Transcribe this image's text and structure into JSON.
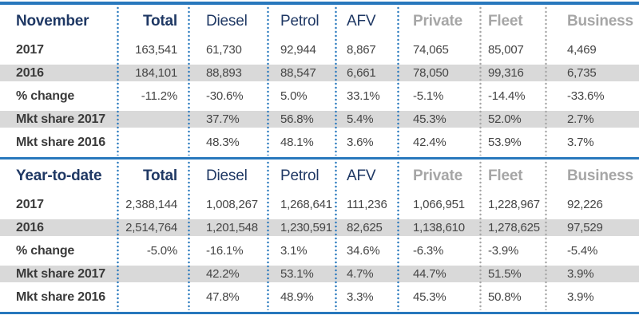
{
  "colors": {
    "accent_blue": "#2878bd",
    "header_navy": "#1f3864",
    "header_gray": "#a6a6a6",
    "stripe_gray": "#d9d9d9",
    "text_dark": "#454545"
  },
  "sections": [
    {
      "title": "November",
      "columns": [
        "Total",
        "Diesel",
        "Petrol",
        "AFV",
        "Private",
        "Fleet",
        "Business"
      ],
      "rows": [
        {
          "label": "2017",
          "cells": [
            "163,541",
            "61,730",
            "92,944",
            "8,867",
            "74,065",
            "85,007",
            "4,469"
          ]
        },
        {
          "label": "2016",
          "cells": [
            "184,101",
            "88,893",
            "88,547",
            "6,661",
            "78,050",
            "99,316",
            "6,735"
          ]
        },
        {
          "label": "% change",
          "cells": [
            "-11.2%",
            "-30.6%",
            "5.0%",
            "33.1%",
            "-5.1%",
            "-14.4%",
            "-33.6%"
          ]
        },
        {
          "label": "Mkt share 2017",
          "cells": [
            "",
            "37.7%",
            "56.8%",
            "5.4%",
            "45.3%",
            "52.0%",
            "2.7%"
          ]
        },
        {
          "label": "Mkt share 2016",
          "cells": [
            "",
            "48.3%",
            "48.1%",
            "3.6%",
            "42.4%",
            "53.9%",
            "3.7%"
          ]
        }
      ]
    },
    {
      "title": "Year-to-date",
      "columns": [
        "Total",
        "Diesel",
        "Petrol",
        "AFV",
        "Private",
        "Fleet",
        "Business"
      ],
      "rows": [
        {
          "label": "2017",
          "cells": [
            "2,388,144",
            "1,008,267",
            "1,268,641",
            "111,236",
            "1,066,951",
            "1,228,967",
            "92,226"
          ]
        },
        {
          "label": "2016",
          "cells": [
            "2,514,764",
            "1,201,548",
            "1,230,591",
            "82,625",
            "1,138,610",
            "1,278,625",
            "97,529"
          ]
        },
        {
          "label": "% change",
          "cells": [
            "-5.0%",
            "-16.1%",
            "3.1%",
            "34.6%",
            "-6.3%",
            "-3.9%",
            "-5.4%"
          ]
        },
        {
          "label": "Mkt share 2017",
          "cells": [
            "",
            "42.2%",
            "53.1%",
            "4.7%",
            "44.7%",
            "51.5%",
            "3.9%"
          ]
        },
        {
          "label": "Mkt share 2016",
          "cells": [
            "",
            "47.8%",
            "48.9%",
            "3.3%",
            "45.3%",
            "50.8%",
            "3.9%"
          ]
        }
      ]
    }
  ]
}
